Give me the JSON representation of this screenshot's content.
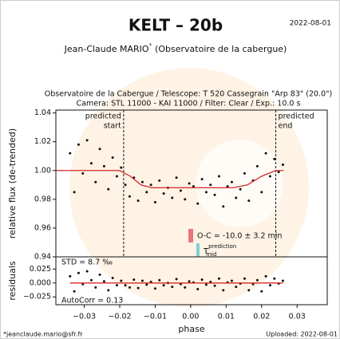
{
  "chart_data": [
    {
      "type": "scatter",
      "title": "KELT – 20b",
      "date": "2022-08-01",
      "author": "Jean-Claude MARIO",
      "author_mark": "*",
      "affiliation": "(Observatoire de la cabergue)",
      "header_lines": [
        "Observatoire de la Cabergue / Telescope: T 520 Cassegrain \"Arp 83\" (20.0\")",
        "Camera: STL 11000 - KAI 11000 / Filter: Clear / Exp.: 10.0 s"
      ],
      "ylabel": "relative flux (de-trended)",
      "xlim": [
        -0.038,
        0.0385
      ],
      "ylim": [
        0.94,
        1.042
      ],
      "yticks": [
        0.94,
        0.96,
        0.98,
        {
          "value": 1,
          "label": "1.00"
        },
        1.02,
        1.04
      ],
      "markers": [
        {
          "label": [
            "predicted",
            "start"
          ],
          "x": -0.0189
        },
        {
          "label": [
            "predicted",
            "end"
          ],
          "x": 0.024
        }
      ],
      "legend": [
        {
          "name": "O-C = -10.0 ± 3.2 min",
          "color": "#e8767a"
        },
        {
          "name": "T",
          "sup": "prediction",
          "sub": "mid",
          "color": "#7fd0d0"
        }
      ],
      "series": [
        {
          "kind": "points",
          "color": "#111111",
          "x": [
            -0.034,
            -0.0328,
            -0.0316,
            -0.0304,
            -0.0292,
            -0.028,
            -0.0268,
            -0.0256,
            -0.0244,
            -0.0232,
            -0.022,
            -0.0208,
            -0.0196,
            -0.0184,
            -0.0172,
            -0.016,
            -0.0148,
            -0.0136,
            -0.0124,
            -0.0112,
            -0.01,
            -0.0088,
            -0.0076,
            -0.0064,
            -0.0052,
            -0.004,
            -0.0028,
            -0.0016,
            -0.0004,
            0.0008,
            0.002,
            0.0032,
            0.0044,
            0.0056,
            0.0068,
            0.008,
            0.0092,
            0.0104,
            0.0116,
            0.0128,
            0.014,
            0.0152,
            0.0164,
            0.0176,
            0.0188,
            0.02,
            0.0212,
            0.0224,
            0.0236,
            0.0248,
            0.026
          ],
          "values": [
            1.012,
            0.985,
            1.018,
            0.998,
            1.021,
            1.005,
            0.992,
            1.015,
            1.003,
            0.987,
            1.009,
            0.996,
            1.002,
            0.99,
            0.982,
            0.995,
            0.979,
            0.992,
            0.985,
            0.99,
            0.978,
            0.993,
            0.984,
            0.988,
            0.981,
            0.995,
            0.986,
            0.98,
            0.991,
            0.989,
            0.977,
            0.994,
            0.985,
            0.99,
            0.983,
            0.996,
            0.975,
            0.989,
            0.992,
            0.981,
            0.987,
            0.998,
            0.979,
            0.993,
            1.003,
            0.985,
            1.012,
            0.996,
            1.008,
            0.999,
            1.004
          ]
        },
        {
          "kind": "line",
          "color": "#d62728",
          "x": [
            -0.0379,
            -0.02,
            -0.017,
            -0.014,
            -0.011,
            0.012,
            0.016,
            0.02,
            0.024,
            0.0262
          ],
          "values": [
            1.0,
            1.0,
            0.996,
            0.99,
            0.988,
            0.988,
            0.99,
            0.996,
            1.0,
            1.0
          ]
        }
      ]
    },
    {
      "type": "scatter",
      "ylabel": "residuals",
      "xlabel": "phase",
      "std_text": "STD = 8.7 ‰",
      "autocorr_text": "AutoCorr = 0.13",
      "xlim": [
        -0.038,
        0.0385
      ],
      "ylim": [
        -0.039,
        0.047
      ],
      "xticks": [
        {
          "value": -0.03,
          "label": "−0.03"
        },
        {
          "value": -0.02,
          "label": "−0.02"
        },
        {
          "value": -0.01,
          "label": "−0.01"
        },
        {
          "value": 0,
          "label": "0.00"
        },
        0.01,
        0.02,
        0.03
      ],
      "yticks": [
        {
          "value": -0.025,
          "label": "−0.025"
        },
        {
          "value": 0,
          "label": "0.000"
        },
        0.025
      ],
      "series": [
        {
          "kind": "points",
          "color": "#111111",
          "x": [
            -0.034,
            -0.0328,
            -0.0316,
            -0.0304,
            -0.0292,
            -0.028,
            -0.0268,
            -0.0256,
            -0.0244,
            -0.0232,
            -0.022,
            -0.0208,
            -0.0196,
            -0.0184,
            -0.0172,
            -0.016,
            -0.0148,
            -0.0136,
            -0.0124,
            -0.0112,
            -0.01,
            -0.0088,
            -0.0076,
            -0.0064,
            -0.0052,
            -0.004,
            -0.0028,
            -0.0016,
            -0.0004,
            0.0008,
            0.002,
            0.0032,
            0.0044,
            0.0056,
            0.0068,
            0.008,
            0.0092,
            0.0104,
            0.0116,
            0.0128,
            0.014,
            0.0152,
            0.0164,
            0.0176,
            0.0188,
            0.02,
            0.0212,
            0.0224,
            0.0236,
            0.0248,
            0.026
          ],
          "values": [
            0.012,
            -0.015,
            0.018,
            -0.002,
            0.021,
            0.005,
            -0.008,
            0.015,
            0.003,
            -0.013,
            0.009,
            -0.004,
            0.004,
            -0.004,
            -0.008,
            0.006,
            -0.009,
            0.004,
            -0.003,
            0.002,
            -0.01,
            0.005,
            -0.004,
            0.0,
            -0.007,
            0.007,
            -0.002,
            -0.008,
            0.003,
            0.001,
            -0.011,
            0.006,
            -0.003,
            0.002,
            -0.005,
            0.008,
            -0.013,
            0.001,
            0.004,
            -0.007,
            -0.001,
            0.008,
            -0.013,
            -0.002,
            0.005,
            -0.015,
            0.012,
            -0.004,
            0.008,
            -0.001,
            0.004
          ]
        },
        {
          "kind": "line",
          "color": "#d62728",
          "x": [
            -0.034,
            0.026
          ],
          "values": [
            0,
            0
          ]
        }
      ]
    }
  ],
  "footer": {
    "email": "*jeanclaude.mario@sfr.fr",
    "uploaded": "Uploaded: 2022-08-01"
  }
}
